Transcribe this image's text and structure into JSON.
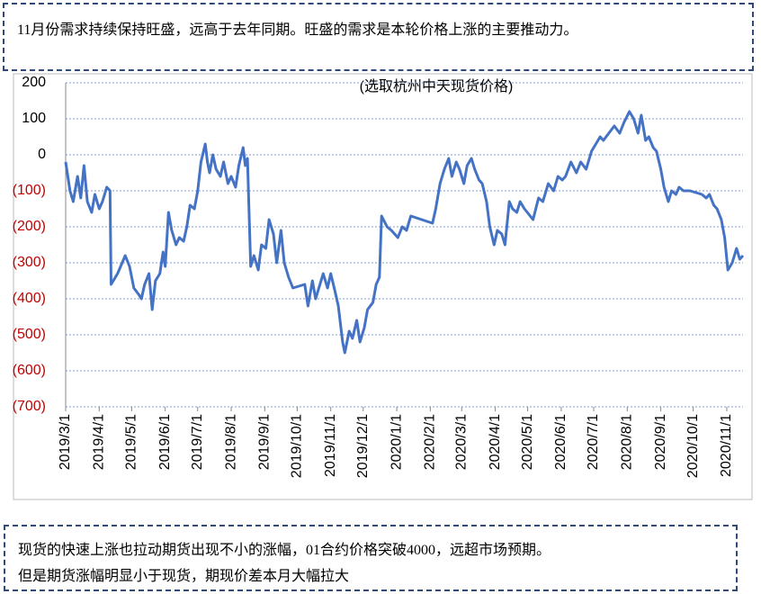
{
  "header_text": "11月份需求持续保持旺盛，远高于去年同期。旺盛的需求是本轮价格上涨的主要推动力。",
  "chart_data": {
    "type": "line",
    "subtitle": "(选取杭州中天现货价格)",
    "x": [
      "2019/3/1",
      "2019/3/5",
      "2019/3/8",
      "2019/3/12",
      "2019/3/15",
      "2019/3/18",
      "2019/3/21",
      "2019/3/25",
      "2019/3/28",
      "2019/4/1",
      "2019/4/4",
      "2019/4/8",
      "2019/4/11",
      "2019/4/12",
      "2019/4/18",
      "2019/4/25",
      "2019/4/29",
      "2019/5/3",
      "2019/5/8",
      "2019/5/10",
      "2019/5/13",
      "2019/5/17",
      "2019/5/20",
      "2019/5/23",
      "2019/5/27",
      "2019/5/30",
      "2019/6/1",
      "2019/6/4",
      "2019/6/7",
      "2019/6/11",
      "2019/6/14",
      "2019/6/18",
      "2019/6/21",
      "2019/6/24",
      "2019/6/28",
      "2019/7/1",
      "2019/7/4",
      "2019/7/8",
      "2019/7/10",
      "2019/7/12",
      "2019/7/15",
      "2019/7/18",
      "2019/7/22",
      "2019/7/25",
      "2019/7/29",
      "2019/8/1",
      "2019/8/5",
      "2019/8/8",
      "2019/8/12",
      "2019/8/14",
      "2019/8/16",
      "2019/8/19",
      "2019/8/22",
      "2019/8/26",
      "2019/8/29",
      "2019/9/2",
      "2019/9/5",
      "2019/9/9",
      "2019/9/12",
      "2019/9/16",
      "2019/9/19",
      "2019/9/23",
      "2019/9/27",
      "2019/10/8",
      "2019/10/11",
      "2019/10/15",
      "2019/10/18",
      "2019/10/22",
      "2019/10/25",
      "2019/10/29",
      "2019/11/1",
      "2019/11/5",
      "2019/11/8",
      "2019/11/12",
      "2019/11/14",
      "2019/11/18",
      "2019/11/21",
      "2019/11/25",
      "2019/11/28",
      "2019/12/2",
      "2019/12/5",
      "2019/12/10",
      "2019/12/13",
      "2019/12/16",
      "2019/12/18",
      "2019/12/23",
      "2019/12/27",
      "2020/1/2",
      "2020/1/6",
      "2020/1/10",
      "2020/1/14",
      "2020/2/3",
      "2020/2/6",
      "2020/2/10",
      "2020/2/14",
      "2020/2/18",
      "2020/2/21",
      "2020/2/25",
      "2020/2/28",
      "2020/3/3",
      "2020/3/6",
      "2020/3/10",
      "2020/3/13",
      "2020/3/17",
      "2020/3/20",
      "2020/3/24",
      "2020/3/27",
      "2020/3/31",
      "2020/4/3",
      "2020/4/7",
      "2020/4/10",
      "2020/4/14",
      "2020/4/17",
      "2020/4/21",
      "2020/4/24",
      "2020/4/28",
      "2020/5/6",
      "2020/5/11",
      "2020/5/15",
      "2020/5/20",
      "2020/5/25",
      "2020/5/29",
      "2020/6/2",
      "2020/6/5",
      "2020/6/10",
      "2020/6/15",
      "2020/6/19",
      "2020/6/24",
      "2020/6/29",
      "2020/7/3",
      "2020/7/7",
      "2020/7/10",
      "2020/7/15",
      "2020/7/20",
      "2020/7/25",
      "2020/7/29",
      "2020/8/3",
      "2020/8/7",
      "2020/8/11",
      "2020/8/14",
      "2020/8/18",
      "2020/8/21",
      "2020/8/25",
      "2020/8/28",
      "2020/9/1",
      "2020/9/4",
      "2020/9/8",
      "2020/9/11",
      "2020/9/15",
      "2020/9/18",
      "2020/9/22",
      "2020/9/28",
      "2020/10/9",
      "2020/10/13",
      "2020/10/16",
      "2020/10/20",
      "2020/10/23",
      "2020/10/27",
      "2020/10/30",
      "2020/11/2",
      "2020/11/6",
      "2020/11/10",
      "2020/11/13",
      "2020/11/16"
    ],
    "values": [
      -20,
      -100,
      -130,
      -60,
      -120,
      -30,
      -130,
      -160,
      -110,
      -150,
      -130,
      -90,
      -100,
      -360,
      -330,
      -280,
      -310,
      -370,
      -390,
      -400,
      -360,
      -330,
      -430,
      -350,
      -330,
      -270,
      -310,
      -160,
      -210,
      -250,
      -230,
      -240,
      -200,
      -140,
      -150,
      -100,
      -20,
      30,
      -20,
      -50,
      0,
      -40,
      -60,
      -20,
      -80,
      -60,
      -90,
      -30,
      20,
      -30,
      -10,
      -310,
      -280,
      -320,
      -250,
      -260,
      -180,
      -220,
      -300,
      -210,
      -300,
      -340,
      -370,
      -360,
      -420,
      -350,
      -400,
      -360,
      -330,
      -370,
      -330,
      -380,
      -420,
      -520,
      -550,
      -490,
      -510,
      -460,
      -520,
      -480,
      -430,
      -410,
      -360,
      -340,
      -170,
      -200,
      -210,
      -230,
      -200,
      -210,
      -170,
      -190,
      -150,
      -80,
      -40,
      -10,
      -60,
      -20,
      -40,
      -80,
      -30,
      -10,
      -40,
      -70,
      -80,
      -130,
      -200,
      -250,
      -210,
      -220,
      -250,
      -130,
      -150,
      -160,
      -130,
      -150,
      -180,
      -120,
      -130,
      -80,
      -100,
      -60,
      -70,
      -60,
      -20,
      -50,
      -20,
      -40,
      10,
      30,
      50,
      40,
      60,
      80,
      60,
      90,
      120,
      100,
      60,
      110,
      40,
      50,
      20,
      10,
      -40,
      -90,
      -130,
      -100,
      -110,
      -90,
      -100,
      -100,
      -110,
      -120,
      -110,
      -140,
      -150,
      -180,
      -230,
      -320,
      -300,
      -260,
      -290,
      -280
    ],
    "color": "#4472c4",
    "xlim": [
      "2019/3/1",
      "2020/11/16"
    ],
    "xticks": [
      "2019/3/1",
      "2019/4/1",
      "2019/5/1",
      "2019/6/1",
      "2019/7/1",
      "2019/8/1",
      "2019/9/1",
      "2019/10/1",
      "2019/11/1",
      "2019/12/1",
      "2020/1/1",
      "2020/2/1",
      "2020/3/1",
      "2020/4/1",
      "2020/5/1",
      "2020/6/1",
      "2020/7/1",
      "2020/8/1",
      "2020/9/1",
      "2020/10/1",
      "2020/11/1"
    ],
    "ylim": [
      -700,
      200
    ],
    "yticks": [
      200,
      100,
      0,
      {
        "value": -100,
        "label": "(100)"
      },
      {
        "value": -200,
        "label": "(200)"
      },
      {
        "value": -300,
        "label": "(300)"
      },
      {
        "value": -400,
        "label": "(400)"
      },
      {
        "value": -500,
        "label": "(500)"
      },
      {
        "value": -600,
        "label": "(600)"
      },
      {
        "value": -700,
        "label": "(700)"
      }
    ],
    "grid": true,
    "negative_tick_color": "#c00000"
  },
  "footer_lines": [
    "现货的快速上涨也拉动期货出现不小的涨幅，01合约价格突破4000，远超市场预期。",
    "但是期货涨幅明显小于现货，期现价差本月大幅拉大"
  ]
}
